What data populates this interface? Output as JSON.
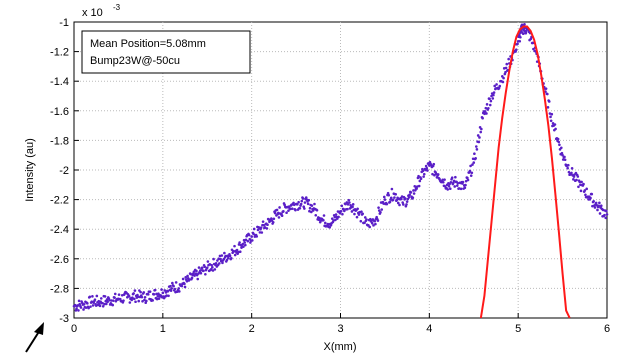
{
  "chart_data": {
    "type": "scatter",
    "xlabel": "X(mm)",
    "ylabel": "Intensity (au)",
    "xlim": [
      0,
      6
    ],
    "ylim": [
      -3.0,
      -1.0
    ],
    "y_scale_note_base": "x 10",
    "y_scale_note_exp": "-3",
    "x_ticks": [
      "0",
      "1",
      "2",
      "3",
      "4",
      "5",
      "6"
    ],
    "y_ticks": [
      "-1",
      "-1.2",
      "-1.4",
      "-1.6",
      "-1.8",
      "-2",
      "-2.2",
      "-2.4",
      "-2.6",
      "-2.8",
      "-3"
    ],
    "grid": true,
    "legend_placement": "top-left",
    "annotation_lines": [
      "Mean Position=5.08mm",
      "Bump23W@-50cu"
    ],
    "marker_color": "#5a1fc7",
    "fit_color": "#ff1a1a",
    "series": [
      {
        "type": "scatter",
        "x": [
          0.0,
          0.1,
          0.2,
          0.3,
          0.4,
          0.5,
          0.6,
          0.7,
          0.8,
          0.9,
          1.0,
          1.1,
          1.2,
          1.3,
          1.4,
          1.5,
          1.6,
          1.7,
          1.8,
          1.9,
          2.0,
          2.1,
          2.2,
          2.3,
          2.4,
          2.5,
          2.6,
          2.7,
          2.8,
          2.9,
          3.0,
          3.1,
          3.2,
          3.3,
          3.4,
          3.5,
          3.6,
          3.7,
          3.8,
          3.9,
          4.0,
          4.1,
          4.2,
          4.3,
          4.4,
          4.5,
          4.6,
          4.7,
          4.8,
          4.9,
          5.0,
          5.05,
          5.1,
          5.2,
          5.3,
          5.4,
          5.5,
          5.6,
          5.7,
          5.8,
          5.9,
          6.0
        ],
        "y": [
          -2.92,
          -2.91,
          -2.89,
          -2.89,
          -2.88,
          -2.87,
          -2.86,
          -2.85,
          -2.86,
          -2.84,
          -2.83,
          -2.8,
          -2.78,
          -2.74,
          -2.7,
          -2.66,
          -2.63,
          -2.59,
          -2.55,
          -2.5,
          -2.45,
          -2.4,
          -2.35,
          -2.29,
          -2.25,
          -2.23,
          -2.22,
          -2.26,
          -2.34,
          -2.36,
          -2.28,
          -2.22,
          -2.29,
          -2.37,
          -2.33,
          -2.2,
          -2.16,
          -2.22,
          -2.18,
          -2.05,
          -1.97,
          -2.03,
          -2.1,
          -2.08,
          -2.12,
          -1.95,
          -1.65,
          -1.5,
          -1.4,
          -1.28,
          -1.13,
          -1.04,
          -1.05,
          -1.2,
          -1.45,
          -1.7,
          -1.9,
          -2.02,
          -2.1,
          -2.18,
          -2.25,
          -2.3
        ]
      },
      {
        "type": "line",
        "name": "",
        "x": [
          4.58,
          4.62,
          4.66,
          4.7,
          4.74,
          4.78,
          4.82,
          4.86,
          4.9,
          4.94,
          4.98,
          5.02,
          5.06,
          5.08,
          5.1,
          5.14,
          5.18,
          5.22,
          5.26,
          5.3,
          5.34,
          5.38,
          5.42,
          5.46,
          5.5,
          5.54,
          5.58
        ],
        "y": [
          -3.0,
          -2.85,
          -2.6,
          -2.35,
          -2.1,
          -1.85,
          -1.65,
          -1.48,
          -1.33,
          -1.2,
          -1.1,
          -1.05,
          -1.03,
          -1.03,
          -1.03,
          -1.06,
          -1.12,
          -1.22,
          -1.36,
          -1.52,
          -1.7,
          -1.92,
          -2.17,
          -2.43,
          -2.7,
          -2.95,
          -3.0
        ]
      }
    ]
  }
}
